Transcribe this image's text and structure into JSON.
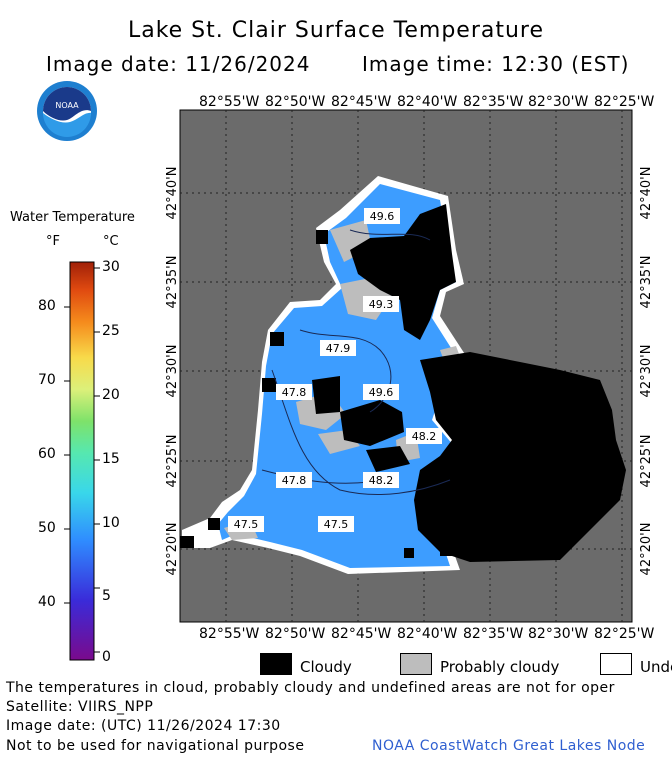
{
  "header": {
    "title": "Lake St. Clair Surface Temperature",
    "image_date": "Image date: 11/26/2024",
    "image_time": "Image time: 12:30 (EST)"
  },
  "logo": {
    "text": "NOAA",
    "icon": "noaa-logo-icon"
  },
  "legend": {
    "title": "Water Temperature",
    "unit_f": "°F",
    "unit_c": "°C",
    "f_ticks": [
      "80",
      "70",
      "60",
      "50",
      "40"
    ],
    "c_ticks": [
      "30",
      "25",
      "20",
      "15",
      "10",
      "5",
      "0"
    ]
  },
  "map": {
    "lon_labels": [
      "82°55'W",
      "82°50'W",
      "82°45'W",
      "82°40'W",
      "82°35'W",
      "82°30'W",
      "82°25'W"
    ],
    "lat_labels": [
      "42°40'N",
      "42°35'N",
      "42°30'N",
      "42°25'N",
      "42°20'N"
    ],
    "temp_labels": [
      "49.6",
      "49.3",
      "47.9",
      "47.8",
      "49.6",
      "48.2",
      "47.8",
      "48.2",
      "47.5",
      "47.5"
    ],
    "colors": {
      "land": "#6b6b6b",
      "water": "#3d9dff",
      "cloud": "#000000",
      "probably_cloudy": "#bdbdbd",
      "undefined": "#ffffff"
    }
  },
  "key": {
    "cloudy": "Cloudy",
    "probably_cloudy": "Probably cloudy",
    "undefined": "Unde"
  },
  "footer": {
    "note": "The temperatures in cloud, probably cloudy and undefined areas are not for oper",
    "satellite": "Satellite: VIIRS_NPP",
    "utc": "Image date: (UTC) 11/26/2024  17:30",
    "nav": "Not to be used for navigational purpose",
    "credit": "NOAA CoastWatch Great Lakes Node"
  }
}
